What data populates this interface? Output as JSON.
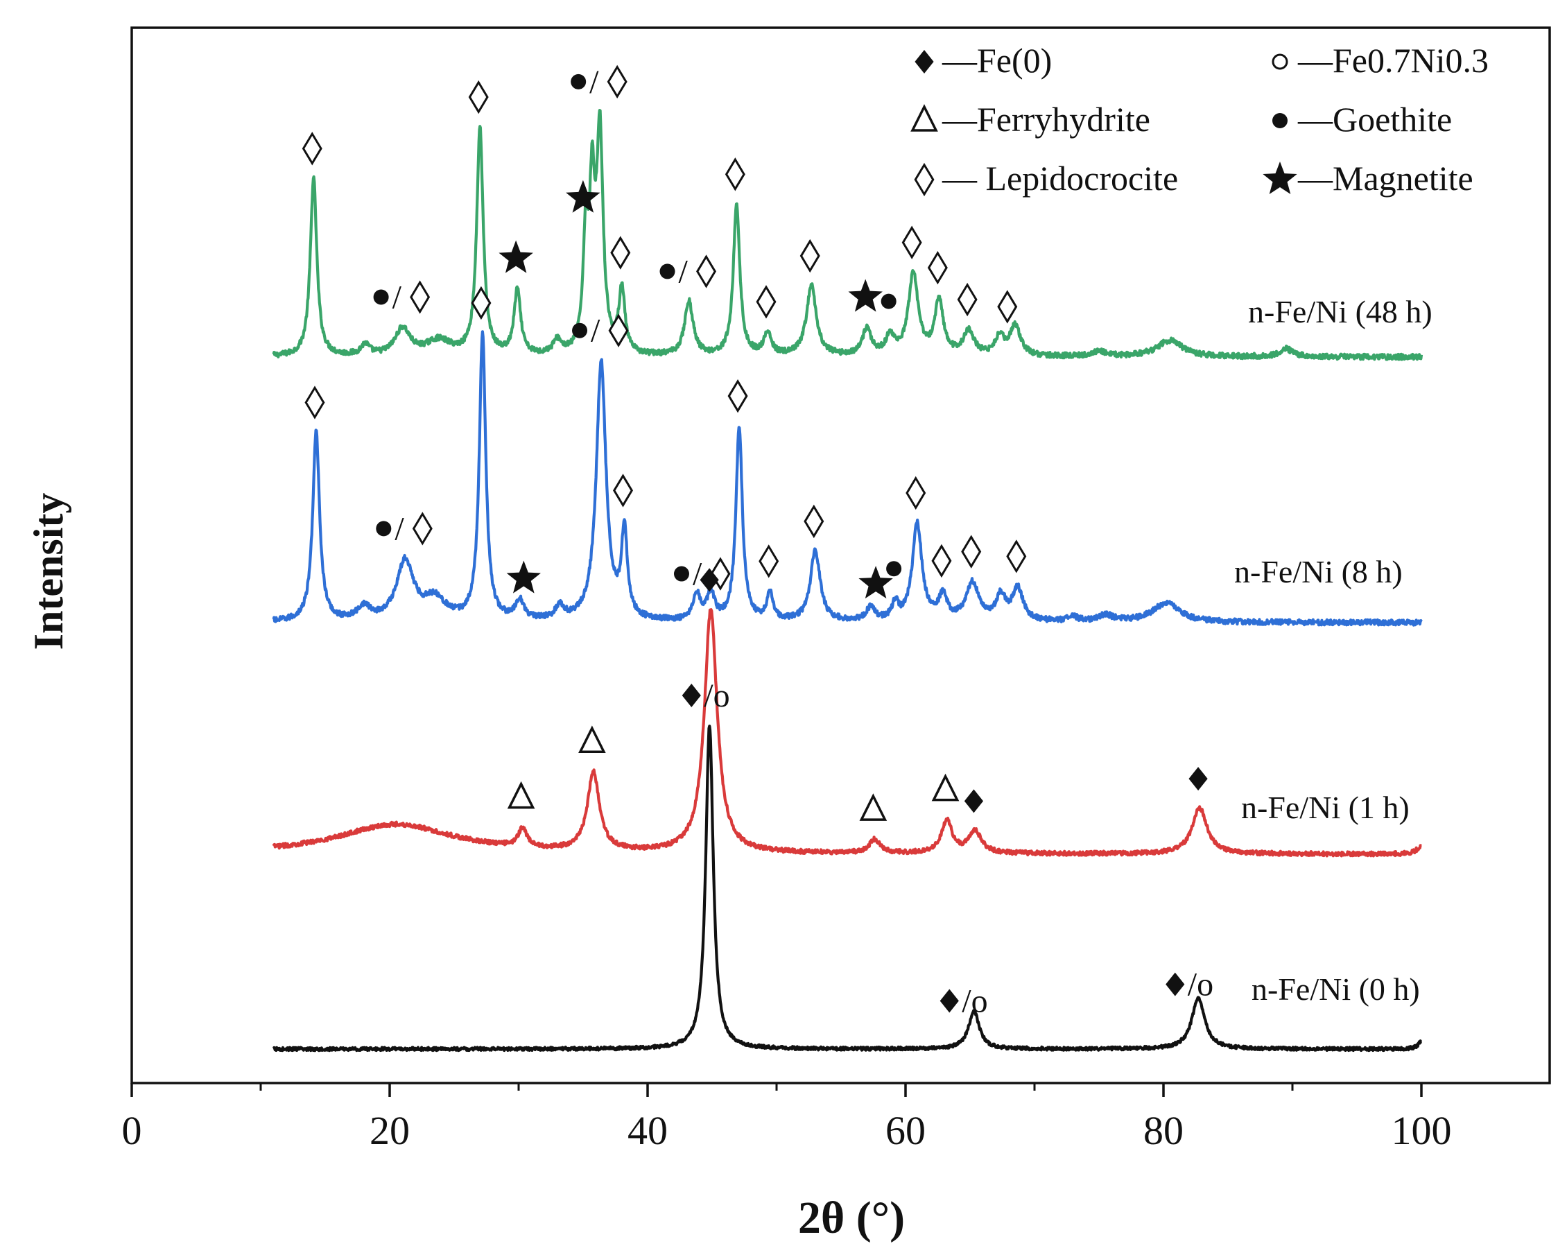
{
  "chart_data": {
    "type": "line",
    "xlabel": "2θ (°)",
    "ylabel": "Intensity",
    "xlim": [
      0,
      110
    ],
    "xticks": [
      0,
      20,
      40,
      60,
      80,
      100
    ],
    "x_range": [
      11,
      100
    ],
    "colors": {
      "axis": "#111111",
      "green": "#3aa569",
      "blue": "#2e6fd6",
      "red": "#d93a3a",
      "black": "#111111"
    },
    "legend": {
      "placement": "top-right",
      "entries": [
        {
          "symbol": "filled-diamond",
          "text": "—Fe(0)"
        },
        {
          "symbol": "open-circle",
          "text": "—Fe0.7Ni0.3"
        },
        {
          "symbol": "open-triangle",
          "text": "—Ferryhydrite"
        },
        {
          "symbol": "filled-circle",
          "text": "—Goethite"
        },
        {
          "symbol": "open-diamond",
          "text": "— Lepidocrocite"
        },
        {
          "symbol": "filled-star",
          "text": "—Magnetite"
        }
      ]
    },
    "series": [
      {
        "name": "n-Fe/Ni (48 h)",
        "color": "green",
        "baseline": 0.7,
        "noise": 0.05,
        "peaks": [
          {
            "x": 14.1,
            "h": 3.3,
            "w": 0.3
          },
          {
            "x": 18.1,
            "h": 0.2,
            "w": 0.4
          },
          {
            "x": 21.0,
            "h": 0.5,
            "w": 0.7
          },
          {
            "x": 23.8,
            "h": 0.28,
            "w": 1.2
          },
          {
            "x": 27.0,
            "h": 4.2,
            "w": 0.3
          },
          {
            "x": 29.9,
            "h": 1.2,
            "w": 0.3
          },
          {
            "x": 33.0,
            "h": 0.25,
            "w": 0.4
          },
          {
            "x": 35.2,
            "h": 2.0,
            "w": 0.25
          },
          {
            "x": 35.7,
            "h": 2.7,
            "w": 0.25
          },
          {
            "x": 36.3,
            "h": 4.0,
            "w": 0.3
          },
          {
            "x": 38.0,
            "h": 1.2,
            "w": 0.28
          },
          {
            "x": 43.2,
            "h": 1.0,
            "w": 0.4
          },
          {
            "x": 46.9,
            "h": 2.8,
            "w": 0.3
          },
          {
            "x": 49.3,
            "h": 0.4,
            "w": 0.35
          },
          {
            "x": 52.7,
            "h": 1.3,
            "w": 0.45
          },
          {
            "x": 57.0,
            "h": 0.5,
            "w": 0.4
          },
          {
            "x": 58.8,
            "h": 0.35,
            "w": 0.4
          },
          {
            "x": 60.6,
            "h": 1.5,
            "w": 0.45
          },
          {
            "x": 62.6,
            "h": 1.0,
            "w": 0.4
          },
          {
            "x": 64.9,
            "h": 0.45,
            "w": 0.5
          },
          {
            "x": 67.3,
            "h": 0.35,
            "w": 0.4
          },
          {
            "x": 68.5,
            "h": 0.55,
            "w": 0.5
          },
          {
            "x": 75.0,
            "h": 0.1,
            "w": 0.6
          },
          {
            "x": 80.5,
            "h": 0.3,
            "w": 1.2
          },
          {
            "x": 89.5,
            "h": 0.15,
            "w": 0.6
          }
        ]
      },
      {
        "name": "n-Fe/Ni (8 h)",
        "color": "blue",
        "baseline": 0.7,
        "noise": 0.05,
        "peaks": [
          {
            "x": 14.3,
            "h": 3.5,
            "w": 0.32
          },
          {
            "x": 18.0,
            "h": 0.25,
            "w": 0.6
          },
          {
            "x": 21.2,
            "h": 1.1,
            "w": 0.8
          },
          {
            "x": 23.5,
            "h": 0.4,
            "w": 1.0
          },
          {
            "x": 27.2,
            "h": 5.3,
            "w": 0.3
          },
          {
            "x": 30.1,
            "h": 0.35,
            "w": 0.4
          },
          {
            "x": 33.2,
            "h": 0.25,
            "w": 0.4
          },
          {
            "x": 36.4,
            "h": 4.8,
            "w": 0.45
          },
          {
            "x": 38.2,
            "h": 1.6,
            "w": 0.28
          },
          {
            "x": 43.8,
            "h": 0.5,
            "w": 0.35
          },
          {
            "x": 44.9,
            "h": 0.5,
            "w": 0.35
          },
          {
            "x": 47.1,
            "h": 3.6,
            "w": 0.3
          },
          {
            "x": 49.5,
            "h": 0.5,
            "w": 0.3
          },
          {
            "x": 53.0,
            "h": 1.3,
            "w": 0.45
          },
          {
            "x": 57.3,
            "h": 0.25,
            "w": 0.4
          },
          {
            "x": 59.2,
            "h": 0.3,
            "w": 0.3
          },
          {
            "x": 60.9,
            "h": 1.8,
            "w": 0.45
          },
          {
            "x": 62.9,
            "h": 0.45,
            "w": 0.4
          },
          {
            "x": 65.2,
            "h": 0.7,
            "w": 0.6
          },
          {
            "x": 67.4,
            "h": 0.45,
            "w": 0.45
          },
          {
            "x": 68.7,
            "h": 0.6,
            "w": 0.5
          },
          {
            "x": 73.0,
            "h": 0.08,
            "w": 0.5
          },
          {
            "x": 75.5,
            "h": 0.12,
            "w": 0.7
          },
          {
            "x": 80.2,
            "h": 0.35,
            "w": 1.3
          }
        ]
      },
      {
        "name": "n-Fe/Ni (1 h)",
        "color": "red",
        "baseline": 0.7,
        "noise": 0.04,
        "peaks": [
          {
            "x": 20.5,
            "h": 0.55,
            "w": 5.5
          },
          {
            "x": 30.3,
            "h": 0.35,
            "w": 0.4
          },
          {
            "x": 35.8,
            "h": 1.45,
            "w": 0.55
          },
          {
            "x": 44.9,
            "h": 4.5,
            "w": 0.6
          },
          {
            "x": 57.6,
            "h": 0.25,
            "w": 0.5
          },
          {
            "x": 63.2,
            "h": 0.6,
            "w": 0.5
          },
          {
            "x": 65.4,
            "h": 0.4,
            "w": 0.6
          },
          {
            "x": 82.8,
            "h": 0.85,
            "w": 0.7
          },
          {
            "x": 100.0,
            "h": 0.15,
            "w": 0.4
          }
        ]
      },
      {
        "name": "n-Fe/Ni (0 h)",
        "color": "black",
        "baseline": 0.7,
        "noise": 0.03,
        "peaks": [
          {
            "x": 44.8,
            "h": 6.0,
            "w": 0.35
          },
          {
            "x": 65.3,
            "h": 0.7,
            "w": 0.5
          },
          {
            "x": 82.7,
            "h": 0.95,
            "w": 0.6
          },
          {
            "x": 100.0,
            "h": 0.15,
            "w": 0.3
          }
        ]
      }
    ],
    "annotations": [
      {
        "series": 0,
        "x": 14.1,
        "items": [
          {
            "sym": "open-diamond"
          }
        ]
      },
      {
        "series": 0,
        "x": 21.0,
        "items": [
          {
            "sym": "filled-circle"
          },
          {
            "text": "/"
          },
          {
            "sym": "open-diamond"
          }
        ]
      },
      {
        "series": 0,
        "x": 27.0,
        "items": [
          {
            "sym": "open-diamond"
          }
        ]
      },
      {
        "series": 0,
        "x": 29.9,
        "items": [
          {
            "sym": "filled-star"
          }
        ]
      },
      {
        "series": 0,
        "x": 35.1,
        "items": [
          {
            "sym": "filled-star"
          }
        ]
      },
      {
        "series": 0,
        "x": 36.3,
        "items": [
          {
            "sym": "filled-circle"
          },
          {
            "text": "/"
          },
          {
            "sym": "open-diamond"
          }
        ]
      },
      {
        "series": 0,
        "x": 38.0,
        "items": [
          {
            "sym": "open-diamond"
          }
        ]
      },
      {
        "series": 0,
        "x": 43.2,
        "items": [
          {
            "sym": "filled-circle"
          },
          {
            "text": "/"
          },
          {
            "sym": "open-diamond"
          }
        ]
      },
      {
        "series": 0,
        "x": 46.9,
        "items": [
          {
            "sym": "open-diamond"
          }
        ]
      },
      {
        "series": 0,
        "x": 49.3,
        "items": [
          {
            "sym": "open-diamond"
          }
        ]
      },
      {
        "series": 0,
        "x": 52.7,
        "items": [
          {
            "sym": "open-diamond"
          }
        ]
      },
      {
        "series": 0,
        "x": 57.0,
        "items": [
          {
            "sym": "filled-star"
          }
        ]
      },
      {
        "series": 0,
        "x": 58.8,
        "items": [
          {
            "sym": "filled-circle"
          }
        ]
      },
      {
        "series": 0,
        "x": 60.6,
        "items": [
          {
            "sym": "open-diamond"
          }
        ]
      },
      {
        "series": 0,
        "x": 62.6,
        "items": [
          {
            "sym": "open-diamond"
          }
        ]
      },
      {
        "series": 0,
        "x": 64.9,
        "items": [
          {
            "sym": "open-diamond"
          }
        ]
      },
      {
        "series": 0,
        "x": 68.0,
        "items": [
          {
            "sym": "open-diamond"
          }
        ]
      },
      {
        "series": 1,
        "x": 14.3,
        "items": [
          {
            "sym": "open-diamond"
          }
        ]
      },
      {
        "series": 1,
        "x": 21.2,
        "items": [
          {
            "sym": "filled-circle"
          },
          {
            "text": "/"
          },
          {
            "sym": "open-diamond"
          }
        ]
      },
      {
        "series": 1,
        "x": 27.2,
        "items": [
          {
            "sym": "open-diamond"
          }
        ]
      },
      {
        "series": 1,
        "x": 30.5,
        "items": [
          {
            "sym": "filled-star"
          }
        ]
      },
      {
        "series": 1,
        "x": 36.4,
        "items": [
          {
            "sym": "filled-circle"
          },
          {
            "text": "/"
          },
          {
            "sym": "open-diamond"
          }
        ]
      },
      {
        "series": 1,
        "x": 38.2,
        "items": [
          {
            "sym": "open-diamond"
          }
        ]
      },
      {
        "series": 1,
        "x": 44.3,
        "items": [
          {
            "sym": "filled-circle"
          },
          {
            "text": "/"
          },
          {
            "sym": "open-diamond"
          }
        ]
      },
      {
        "series": 1,
        "x": 47.1,
        "items": [
          {
            "sym": "open-diamond"
          }
        ]
      },
      {
        "series": 1,
        "x": 49.5,
        "items": [
          {
            "sym": "open-diamond"
          }
        ]
      },
      {
        "series": 1,
        "x": 53.0,
        "items": [
          {
            "sym": "open-diamond"
          }
        ]
      },
      {
        "series": 1,
        "x": 57.8,
        "items": [
          {
            "sym": "filled-star"
          }
        ]
      },
      {
        "series": 1,
        "x": 59.2,
        "items": [
          {
            "sym": "filled-circle"
          }
        ]
      },
      {
        "series": 1,
        "x": 60.9,
        "items": [
          {
            "sym": "open-diamond"
          }
        ]
      },
      {
        "series": 1,
        "x": 62.9,
        "items": [
          {
            "sym": "open-diamond"
          }
        ]
      },
      {
        "series": 1,
        "x": 65.2,
        "items": [
          {
            "sym": "open-diamond"
          }
        ]
      },
      {
        "series": 1,
        "x": 68.7,
        "items": [
          {
            "sym": "open-diamond"
          }
        ]
      },
      {
        "series": 2,
        "x": 30.3,
        "items": [
          {
            "sym": "open-triangle"
          }
        ]
      },
      {
        "series": 2,
        "x": 35.8,
        "items": [
          {
            "sym": "open-triangle"
          }
        ]
      },
      {
        "series": 2,
        "x": 44.9,
        "items": [
          {
            "sym": "filled-diamond"
          }
        ]
      },
      {
        "series": 2,
        "x": 57.6,
        "items": [
          {
            "sym": "open-triangle"
          }
        ]
      },
      {
        "series": 2,
        "x": 63.2,
        "items": [
          {
            "sym": "open-triangle"
          }
        ]
      },
      {
        "series": 2,
        "x": 65.4,
        "items": [
          {
            "sym": "filled-diamond"
          }
        ]
      },
      {
        "series": 2,
        "x": 82.8,
        "items": [
          {
            "sym": "filled-diamond"
          }
        ]
      },
      {
        "series": 3,
        "x": 44.8,
        "items": [
          {
            "sym": "filled-diamond"
          },
          {
            "text": "/o"
          }
        ]
      },
      {
        "series": 3,
        "x": 64.8,
        "items": [
          {
            "sym": "filled-diamond"
          },
          {
            "text": "/o"
          }
        ]
      },
      {
        "series": 3,
        "x": 82.3,
        "items": [
          {
            "sym": "filled-diamond"
          },
          {
            "text": "/o"
          }
        ]
      }
    ]
  }
}
